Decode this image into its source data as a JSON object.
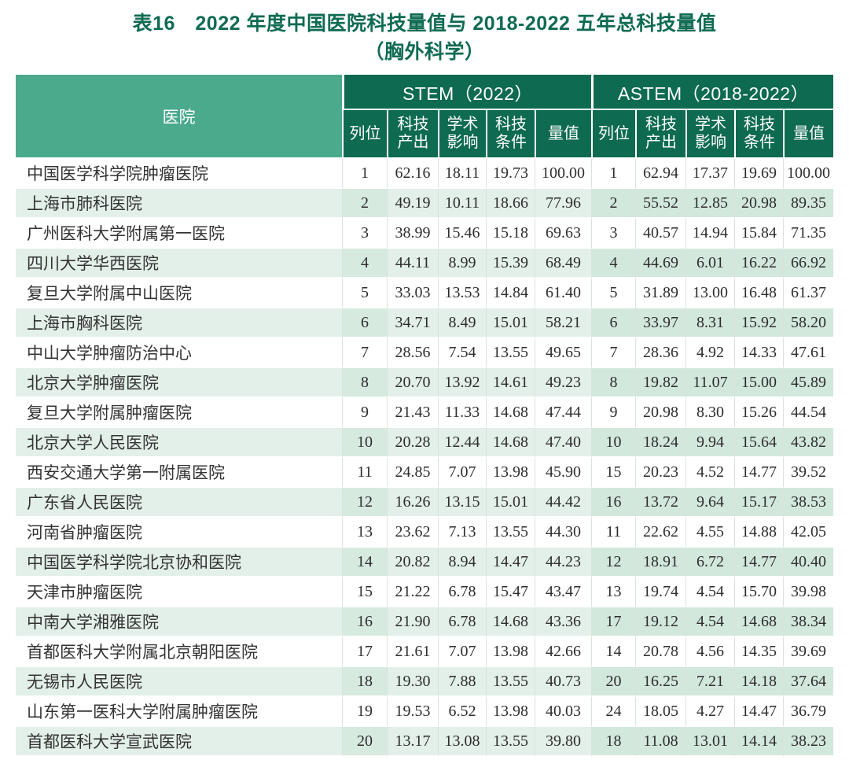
{
  "title": {
    "line1": "表16　2022 年度中国医院科技量值与 2018-2022 五年总科技量值",
    "line2": "（胸外科学）"
  },
  "table": {
    "hospital_header": "医院",
    "groups": [
      {
        "label": "STEM（2022）"
      },
      {
        "label": "ASTEM（2018-2022）"
      }
    ],
    "subheaders": [
      "列位",
      "科技产出",
      "学术影响",
      "科技条件",
      "量值"
    ],
    "rows": [
      {
        "hospital": "中国医学科学院肿瘤医院",
        "stem": [
          "1",
          "62.16",
          "18.11",
          "19.73",
          "100.00"
        ],
        "astem": [
          "1",
          "62.94",
          "17.37",
          "19.69",
          "100.00"
        ]
      },
      {
        "hospital": "上海市肺科医院",
        "stem": [
          "2",
          "49.19",
          "10.11",
          "18.66",
          "77.96"
        ],
        "astem": [
          "2",
          "55.52",
          "12.85",
          "20.98",
          "89.35"
        ]
      },
      {
        "hospital": "广州医科大学附属第一医院",
        "stem": [
          "3",
          "38.99",
          "15.46",
          "15.18",
          "69.63"
        ],
        "astem": [
          "3",
          "40.57",
          "14.94",
          "15.84",
          "71.35"
        ]
      },
      {
        "hospital": "四川大学华西医院",
        "stem": [
          "4",
          "44.11",
          "8.99",
          "15.39",
          "68.49"
        ],
        "astem": [
          "4",
          "44.69",
          "6.01",
          "16.22",
          "66.92"
        ]
      },
      {
        "hospital": "复旦大学附属中山医院",
        "stem": [
          "5",
          "33.03",
          "13.53",
          "14.84",
          "61.40"
        ],
        "astem": [
          "5",
          "31.89",
          "13.00",
          "16.48",
          "61.37"
        ]
      },
      {
        "hospital": "上海市胸科医院",
        "stem": [
          "6",
          "34.71",
          "8.49",
          "15.01",
          "58.21"
        ],
        "astem": [
          "6",
          "33.97",
          "8.31",
          "15.92",
          "58.20"
        ]
      },
      {
        "hospital": "中山大学肿瘤防治中心",
        "stem": [
          "7",
          "28.56",
          "7.54",
          "13.55",
          "49.65"
        ],
        "astem": [
          "7",
          "28.36",
          "4.92",
          "14.33",
          "47.61"
        ]
      },
      {
        "hospital": "北京大学肿瘤医院",
        "stem": [
          "8",
          "20.70",
          "13.92",
          "14.61",
          "49.23"
        ],
        "astem": [
          "8",
          "19.82",
          "11.07",
          "15.00",
          "45.89"
        ]
      },
      {
        "hospital": "复旦大学附属肿瘤医院",
        "stem": [
          "9",
          "21.43",
          "11.33",
          "14.68",
          "47.44"
        ],
        "astem": [
          "9",
          "20.98",
          "8.30",
          "15.26",
          "44.54"
        ]
      },
      {
        "hospital": "北京大学人民医院",
        "stem": [
          "10",
          "20.28",
          "12.44",
          "14.68",
          "47.40"
        ],
        "astem": [
          "10",
          "18.24",
          "9.94",
          "15.64",
          "43.82"
        ]
      },
      {
        "hospital": "西安交通大学第一附属医院",
        "stem": [
          "11",
          "24.85",
          "7.07",
          "13.98",
          "45.90"
        ],
        "astem": [
          "15",
          "20.23",
          "4.52",
          "14.77",
          "39.52"
        ]
      },
      {
        "hospital": "广东省人民医院",
        "stem": [
          "12",
          "16.26",
          "13.15",
          "15.01",
          "44.42"
        ],
        "astem": [
          "16",
          "13.72",
          "9.64",
          "15.17",
          "38.53"
        ]
      },
      {
        "hospital": "河南省肿瘤医院",
        "stem": [
          "13",
          "23.62",
          "7.13",
          "13.55",
          "44.30"
        ],
        "astem": [
          "11",
          "22.62",
          "4.55",
          "14.88",
          "42.05"
        ]
      },
      {
        "hospital": "中国医学科学院北京协和医院",
        "stem": [
          "14",
          "20.82",
          "8.94",
          "14.47",
          "44.23"
        ],
        "astem": [
          "12",
          "18.91",
          "6.72",
          "14.77",
          "40.40"
        ]
      },
      {
        "hospital": "天津市肿瘤医院",
        "stem": [
          "15",
          "21.22",
          "6.78",
          "15.47",
          "43.47"
        ],
        "astem": [
          "13",
          "19.74",
          "4.54",
          "15.70",
          "39.98"
        ]
      },
      {
        "hospital": "中南大学湘雅医院",
        "stem": [
          "16",
          "21.90",
          "6.78",
          "14.68",
          "43.36"
        ],
        "astem": [
          "17",
          "19.12",
          "4.54",
          "14.68",
          "38.34"
        ]
      },
      {
        "hospital": "首都医科大学附属北京朝阳医院",
        "stem": [
          "17",
          "21.61",
          "7.07",
          "13.98",
          "42.66"
        ],
        "astem": [
          "14",
          "20.78",
          "4.56",
          "14.35",
          "39.69"
        ]
      },
      {
        "hospital": "无锡市人民医院",
        "stem": [
          "18",
          "19.30",
          "7.88",
          "13.55",
          "40.73"
        ],
        "astem": [
          "20",
          "16.25",
          "7.21",
          "14.18",
          "37.64"
        ]
      },
      {
        "hospital": "山东第一医科大学附属肿瘤医院",
        "stem": [
          "19",
          "19.53",
          "6.52",
          "13.98",
          "40.03"
        ],
        "astem": [
          "24",
          "18.05",
          "4.27",
          "14.47",
          "36.79"
        ]
      },
      {
        "hospital": "首都医科大学宣武医院",
        "stem": [
          "20",
          "13.17",
          "13.08",
          "13.55",
          "39.80"
        ],
        "astem": [
          "18",
          "11.08",
          "13.01",
          "14.14",
          "38.23"
        ]
      }
    ]
  },
  "colors": {
    "title": "#0f6b53",
    "header-dark": "#0e6a51",
    "header-light": "#4ba98c",
    "stripe": "#e3efe9",
    "stripe-rank": "#d7eae0",
    "stripe-astem": "#d3e8dd"
  }
}
